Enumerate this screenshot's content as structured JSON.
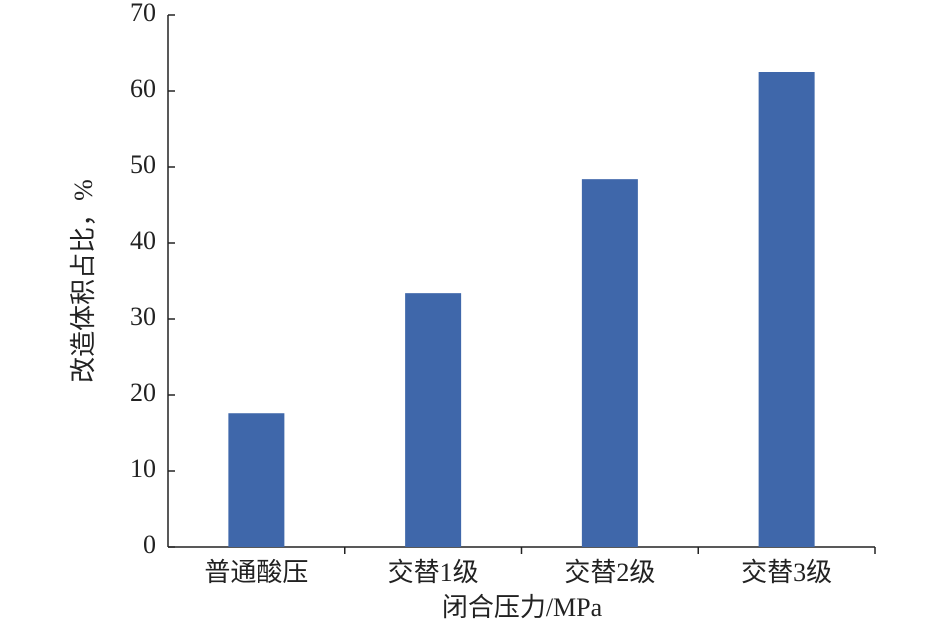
{
  "chart_data": {
    "type": "bar",
    "x_label": "闭合压力/MPa",
    "y_label": "改造体积占比，%",
    "categories": [
      "普通酸压",
      "交替1级",
      "交替2级",
      "交替3级"
    ],
    "values": [
      17.6,
      33.4,
      48.4,
      62.5
    ],
    "color": "#3f67aa",
    "ylim": [
      0,
      70
    ],
    "yticks": [
      0,
      10,
      20,
      30,
      40,
      50,
      60,
      70
    ],
    "grid": false
  }
}
